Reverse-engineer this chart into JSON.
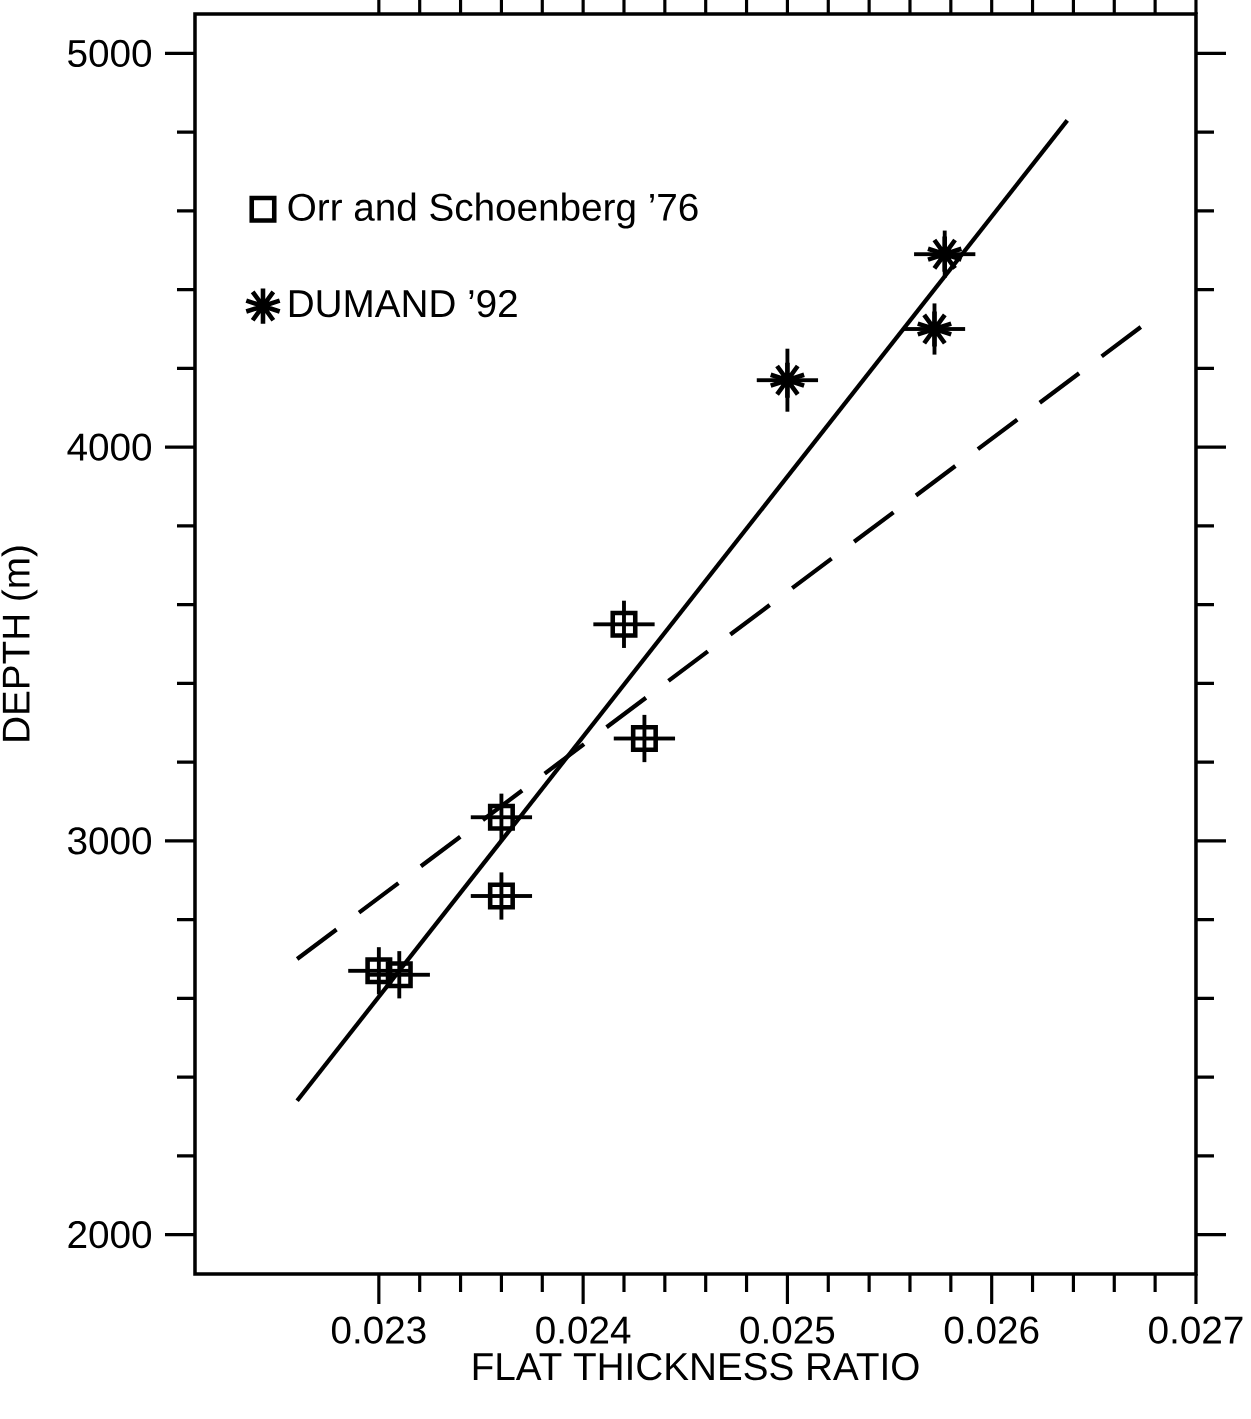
{
  "chart_data": {
    "type": "scatter",
    "xlabel": "FLAT THICKNESS RATIO",
    "ylabel": "DEPTH (m)",
    "xlim": [
      0.0221,
      0.027
    ],
    "ylim": [
      1900,
      5100
    ],
    "xticks": [
      0.023,
      0.024,
      0.025,
      0.026,
      0.027
    ],
    "yticks": [
      2000,
      3000,
      4000,
      5000
    ],
    "legend": "top left",
    "series": [
      {
        "name": "Orr and Schoenberg ’76",
        "color": "#000000",
        "marker": "square",
        "x": [
          0.023,
          0.0231,
          0.0236,
          0.0236,
          0.0242,
          0.0243
        ],
        "values": [
          2670,
          2660,
          3060,
          2860,
          3550,
          3260
        ],
        "errors": [
          60,
          60,
          60,
          60,
          60,
          60
        ],
        "xerrors": [
          0.00015,
          0.00015,
          0.00015,
          0.00015,
          0.00015,
          0.00015
        ]
      },
      {
        "name": "DUMAND ’92",
        "color": "#000000",
        "marker": "cross",
        "x": [
          0.025,
          0.02572,
          0.02577
        ],
        "values": [
          4170,
          4300,
          4490
        ],
        "errors": [
          80,
          65,
          60
        ],
        "xerrors": [
          0.00015,
          0.00015,
          0.00015
        ]
      },
      {
        "type": "line",
        "color": "#000000",
        "marker": "none",
        "line_style": "solid",
        "x": [
          0.0226,
          0.02637
        ],
        "values": [
          2340,
          4830
        ]
      },
      {
        "type": "line",
        "color": "#000000",
        "marker": "none",
        "line_style": "dashed",
        "x": [
          0.0226,
          0.02673
        ],
        "values": [
          2700,
          4305
        ]
      }
    ]
  }
}
